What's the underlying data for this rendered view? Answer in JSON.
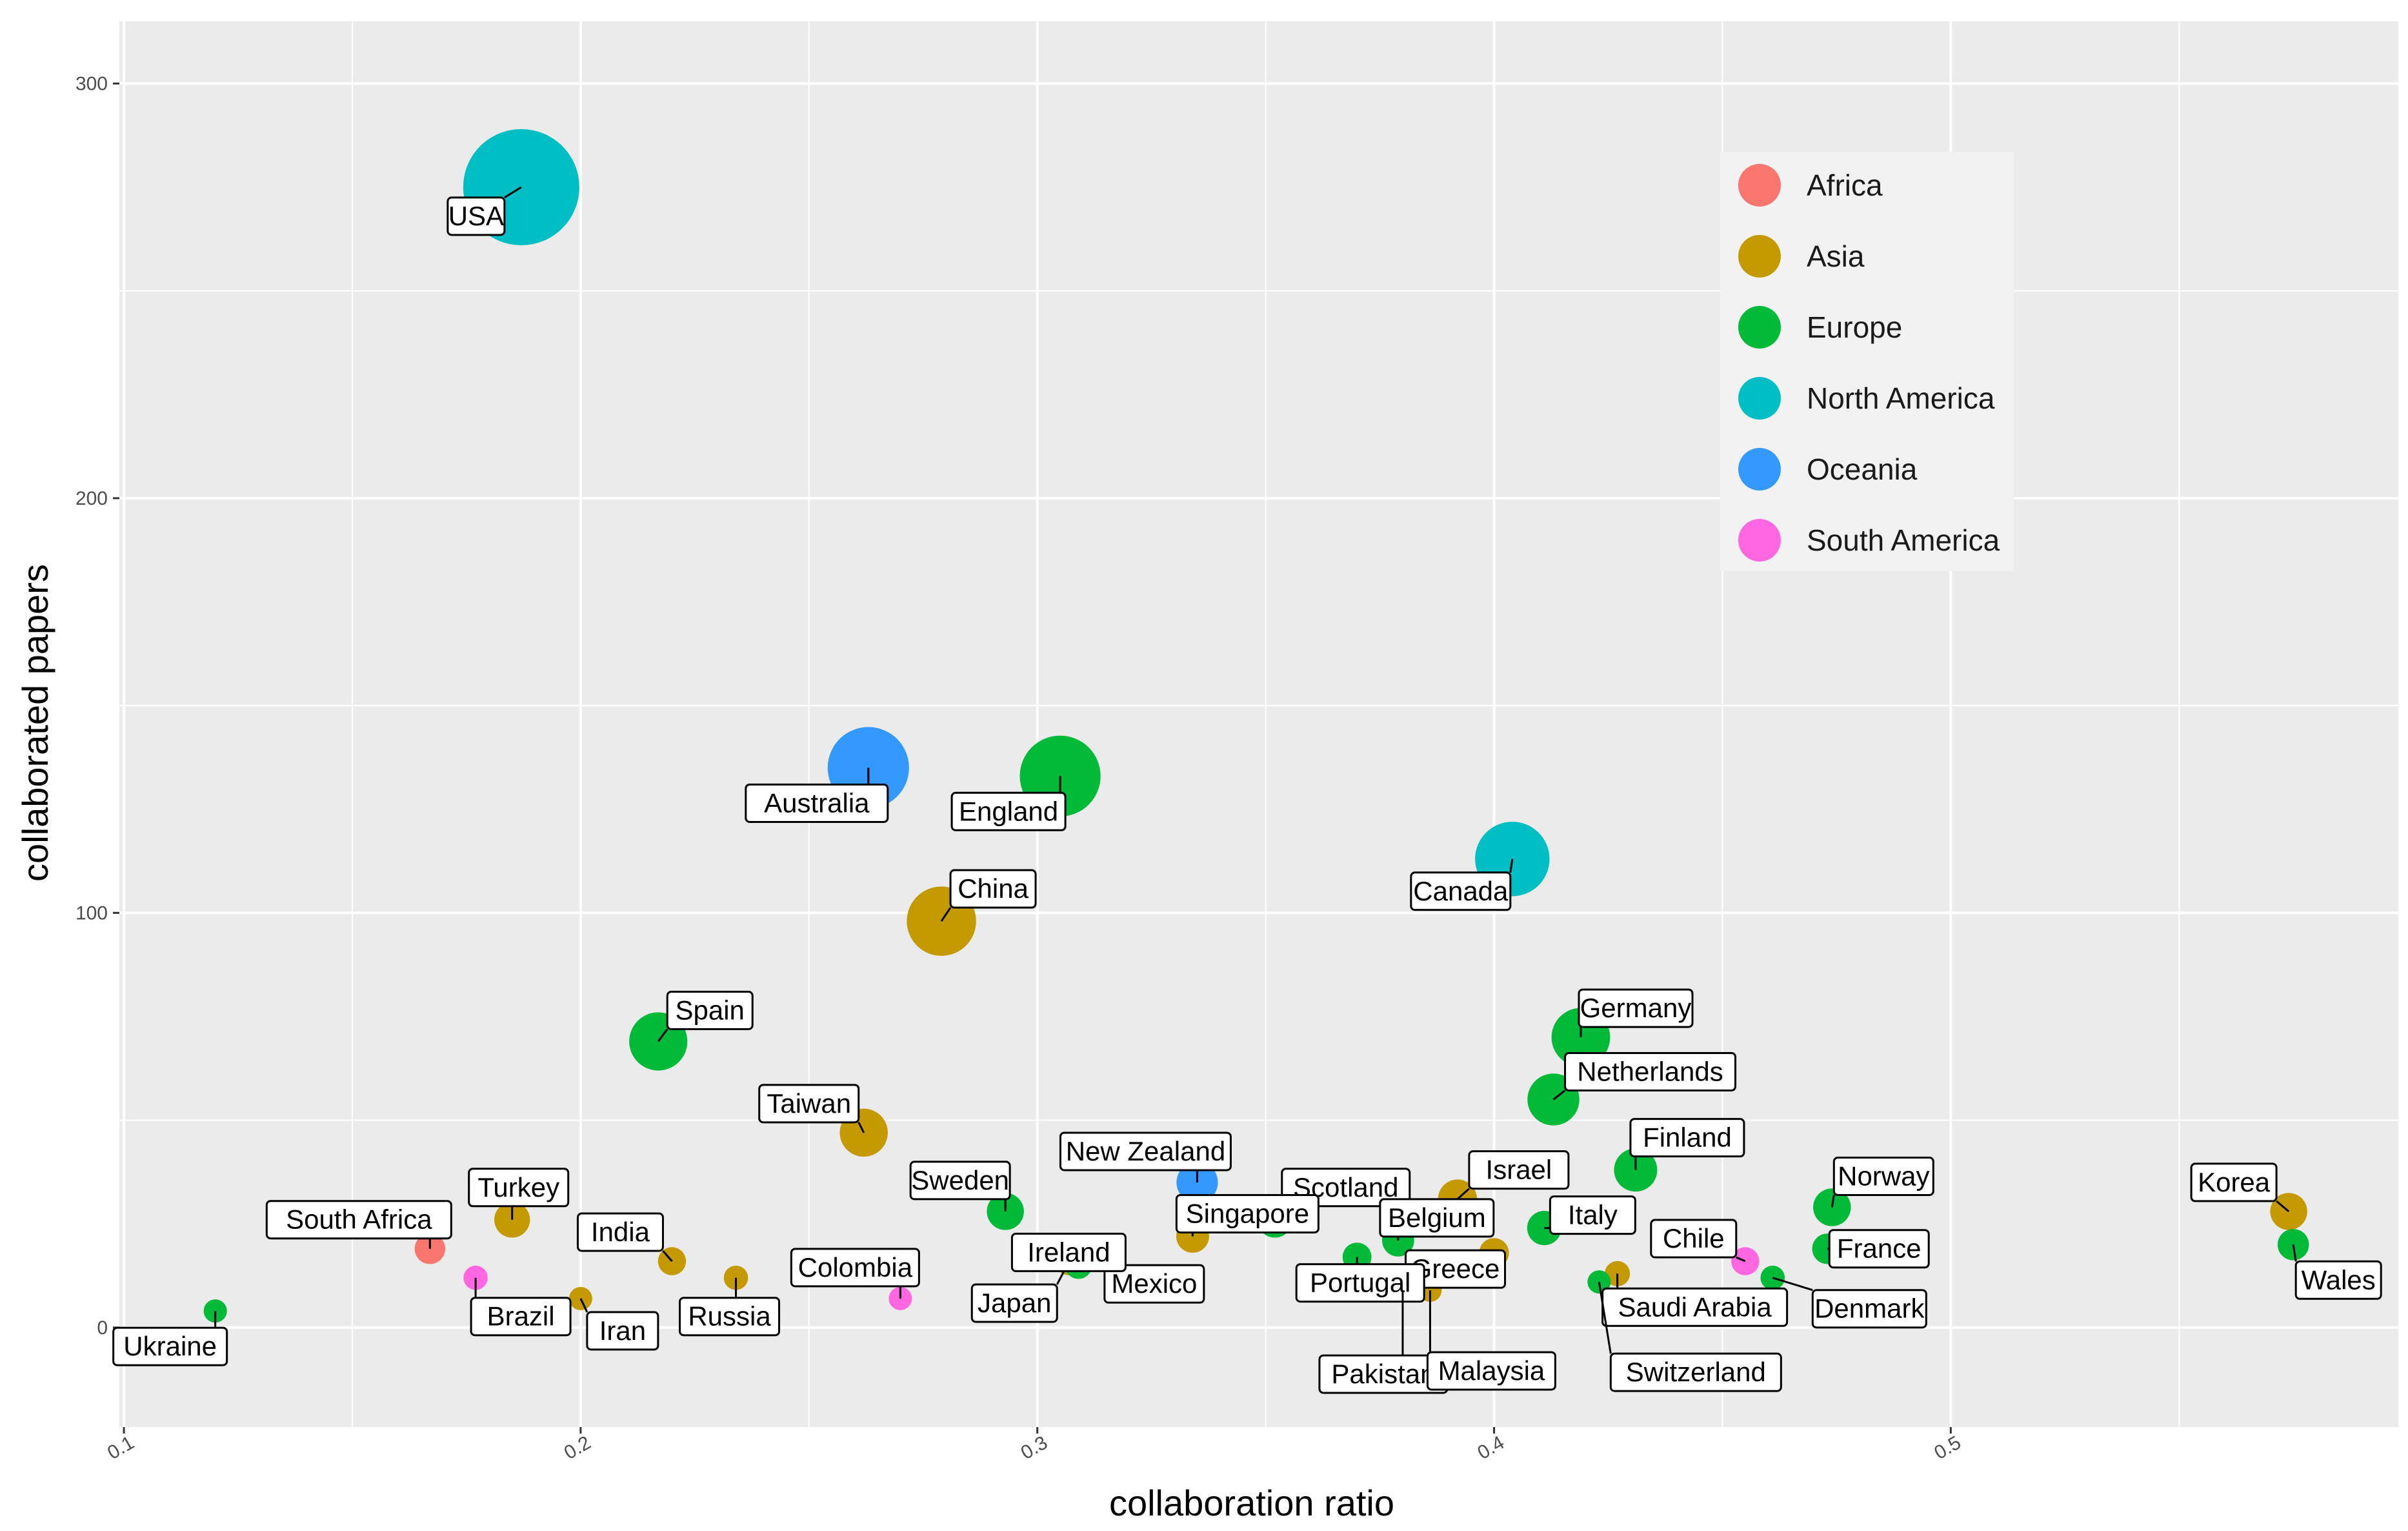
{
  "chart_data": {
    "type": "scatter",
    "title": "",
    "xlabel": "collaboration ratio",
    "ylabel": "collaborated papers",
    "xlim": [
      0.099,
      0.598
    ],
    "ylim": [
      -24,
      315
    ],
    "x_ticks": [
      0.1,
      0.2,
      0.3,
      0.4,
      0.5
    ],
    "x_tick_labels": [
      "0.1",
      "0.2",
      "0.3",
      "0.4",
      "0.5"
    ],
    "y_ticks": [
      0,
      100,
      200,
      300
    ],
    "y_tick_labels": [
      "0",
      "100",
      "200",
      "300"
    ],
    "grid": true,
    "legend_position": "top-right",
    "size_encodes": "collaborated papers",
    "groups": [
      {
        "name": "Africa",
        "color": "#F8766D"
      },
      {
        "name": "Asia",
        "color": "#C49A00"
      },
      {
        "name": "Europe",
        "color": "#00BA38"
      },
      {
        "name": "North America",
        "color": "#00BFC4"
      },
      {
        "name": "Oceania",
        "color": "#3399FF"
      },
      {
        "name": "South America",
        "color": "#FF66E0"
      }
    ],
    "points": [
      {
        "label": "USA",
        "x": 0.187,
        "y": 275,
        "group": "North America"
      },
      {
        "label": "Australia",
        "x": 0.263,
        "y": 135,
        "group": "Oceania"
      },
      {
        "label": "England",
        "x": 0.305,
        "y": 133,
        "group": "Europe"
      },
      {
        "label": "Canada",
        "x": 0.404,
        "y": 113,
        "group": "North America"
      },
      {
        "label": "China",
        "x": 0.279,
        "y": 98,
        "group": "Asia"
      },
      {
        "label": "Spain",
        "x": 0.217,
        "y": 69,
        "group": "Europe"
      },
      {
        "label": "Germany",
        "x": 0.419,
        "y": 70,
        "group": "Europe"
      },
      {
        "label": "Netherlands",
        "x": 0.413,
        "y": 55,
        "group": "Europe"
      },
      {
        "label": "Taiwan",
        "x": 0.262,
        "y": 47,
        "group": "Asia"
      },
      {
        "label": "Finland",
        "x": 0.431,
        "y": 38,
        "group": "Europe"
      },
      {
        "label": "New Zealand",
        "x": 0.335,
        "y": 35,
        "group": "Oceania"
      },
      {
        "label": "Israel",
        "x": 0.392,
        "y": 31,
        "group": "Asia"
      },
      {
        "label": "Norway",
        "x": 0.474,
        "y": 29,
        "group": "Europe"
      },
      {
        "label": "Korea",
        "x": 0.574,
        "y": 28,
        "group": "Asia"
      },
      {
        "label": "Sweden",
        "x": 0.293,
        "y": 28,
        "group": "Europe"
      },
      {
        "label": "Turkey",
        "x": 0.185,
        "y": 26,
        "group": "Asia"
      },
      {
        "label": "Scotland",
        "x": 0.352,
        "y": 26,
        "group": "Europe"
      },
      {
        "label": "Italy",
        "x": 0.411,
        "y": 24,
        "group": "Europe"
      },
      {
        "label": "Singapore",
        "x": 0.334,
        "y": 22,
        "group": "Asia"
      },
      {
        "label": "Belgium",
        "x": 0.379,
        "y": 21,
        "group": "Europe"
      },
      {
        "label": "Wales",
        "x": 0.575,
        "y": 20,
        "group": "Europe"
      },
      {
        "label": "South Africa",
        "x": 0.167,
        "y": 19,
        "group": "Africa"
      },
      {
        "label": "France",
        "x": 0.473,
        "y": 19,
        "group": "Europe"
      },
      {
        "label": "Greece",
        "x": 0.4,
        "y": 18,
        "group": "Asia"
      },
      {
        "label": "Mexico",
        "x": 0.315,
        "y": 18,
        "group": "Europe"
      },
      {
        "label": "Portugal",
        "x": 0.37,
        "y": 17,
        "group": "Europe"
      },
      {
        "label": "Japan",
        "x": 0.307,
        "y": 16,
        "group": "Asia"
      },
      {
        "label": "India",
        "x": 0.22,
        "y": 16,
        "group": "Asia"
      },
      {
        "label": "Chile",
        "x": 0.455,
        "y": 16,
        "group": "South America"
      },
      {
        "label": "Ireland",
        "x": 0.309,
        "y": 15,
        "group": "Europe"
      },
      {
        "label": "Saudi Arabia",
        "x": 0.427,
        "y": 13,
        "group": "Asia"
      },
      {
        "label": "Denmark",
        "x": 0.461,
        "y": 12,
        "group": "Europe"
      },
      {
        "label": "Brazil",
        "x": 0.177,
        "y": 12,
        "group": "South America"
      },
      {
        "label": "Russia",
        "x": 0.234,
        "y": 12,
        "group": "Asia"
      },
      {
        "label": "Switzerland",
        "x": 0.423,
        "y": 11,
        "group": "Europe"
      },
      {
        "label": "Pakistan",
        "x": 0.38,
        "y": 9,
        "group": "Asia"
      },
      {
        "label": "Malaysia",
        "x": 0.386,
        "y": 9,
        "group": "Asia"
      },
      {
        "label": "Colombia",
        "x": 0.27,
        "y": 7,
        "group": "South America"
      },
      {
        "label": "Iran",
        "x": 0.2,
        "y": 7,
        "group": "Asia"
      },
      {
        "label": "Ukraine",
        "x": 0.12,
        "y": 4,
        "group": "Europe"
      }
    ]
  }
}
